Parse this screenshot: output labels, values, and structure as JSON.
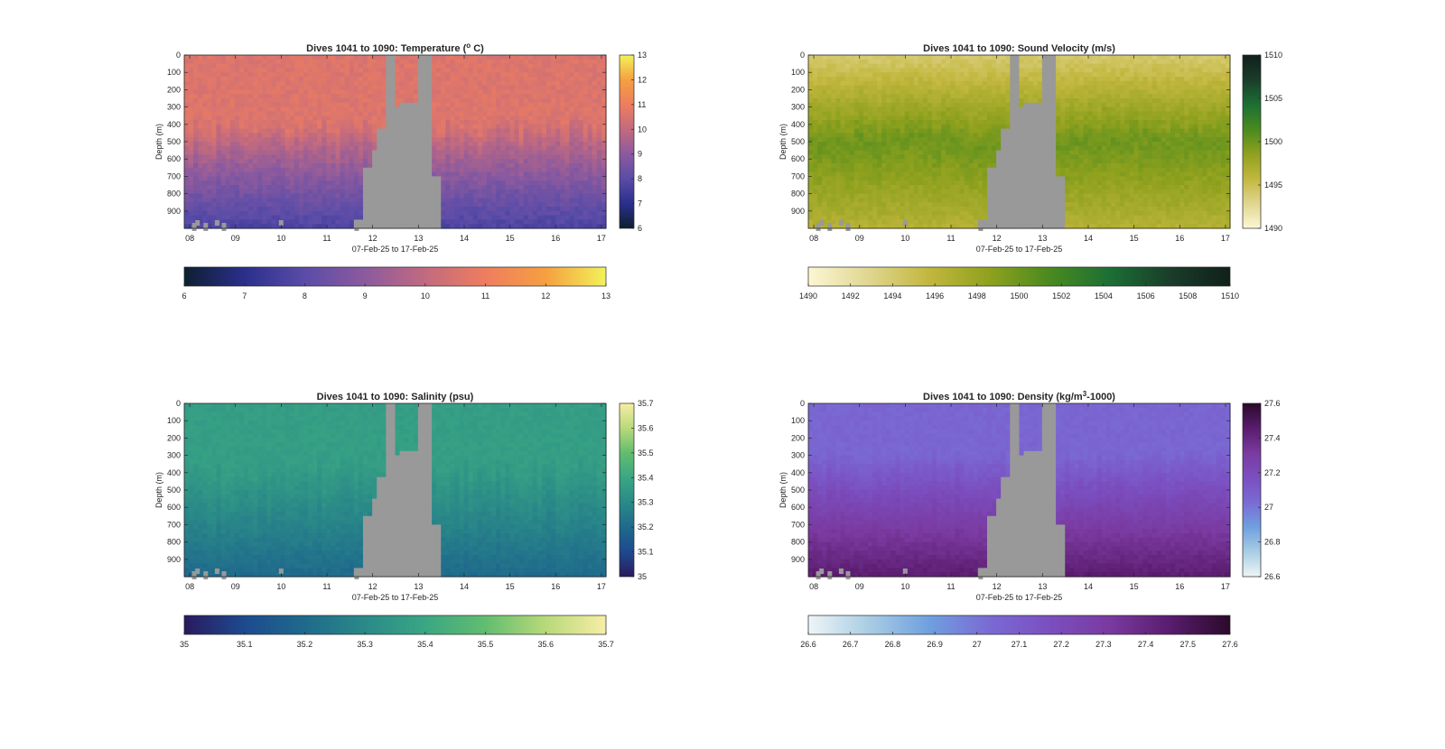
{
  "chart_data": [
    {
      "type": "heatmap",
      "title_main": "Dives 1041 to 1090: Temperature (",
      "title_sup": "o",
      "title_end": " C)",
      "xlabel": "07-Feb-25 to 17-Feb-25",
      "ylabel": "Depth (m)",
      "xlim": [
        7.88,
        17.1
      ],
      "ylim": [
        0,
        1000
      ],
      "x_ticks": [
        "08",
        "09",
        "10",
        "11",
        "12",
        "13",
        "14",
        "15",
        "16",
        "17"
      ],
      "y_ticks": [
        "0",
        "100",
        "200",
        "300",
        "400",
        "500",
        "600",
        "700",
        "800",
        "900"
      ],
      "colorbar_range": [
        6,
        13
      ],
      "colorbar_ticks": [
        "6",
        "7",
        "8",
        "9",
        "10",
        "11",
        "12",
        "13"
      ],
      "horizontal_colorbar_ticks": [
        "6",
        "7",
        "8",
        "9",
        "10",
        "11",
        "12",
        "13"
      ],
      "colormap": [
        "#0d1f30",
        "#2b2f8c",
        "#5a4ca8",
        "#8c5a9e",
        "#c26a7f",
        "#ee7d5f",
        "#f5a040",
        "#f2f25a"
      ],
      "surface_value": 10.6,
      "bottom_value": 7.7,
      "thermocline_depth": 400,
      "gap_value_color": "#999999"
    },
    {
      "type": "heatmap",
      "title_main": "Dives 1041 to 1090: Sound Velocity (m/s)",
      "title_sup": "",
      "title_end": "",
      "xlabel": "07-Feb-25 to 17-Feb-25",
      "ylabel": "Depth (m)",
      "xlim": [
        7.88,
        17.1
      ],
      "ylim": [
        0,
        1000
      ],
      "x_ticks": [
        "08",
        "09",
        "10",
        "11",
        "12",
        "13",
        "14",
        "15",
        "16",
        "17"
      ],
      "y_ticks": [
        "0",
        "100",
        "200",
        "300",
        "400",
        "500",
        "600",
        "700",
        "800",
        "900"
      ],
      "colorbar_range": [
        1490,
        1510
      ],
      "colorbar_ticks": [
        "1490",
        "1495",
        "1500",
        "1505",
        "1510"
      ],
      "horizontal_colorbar_ticks": [
        "1490",
        "1492",
        "1494",
        "1496",
        "1498",
        "1500",
        "1502",
        "1504",
        "1506",
        "1508",
        "1510"
      ],
      "colormap": [
        "#fcf7d4",
        "#e0d690",
        "#c2b73e",
        "#8fa11e",
        "#4a8a1f",
        "#1c6f34",
        "#1a3d2a",
        "#10201a"
      ],
      "surface_value": 1494,
      "mid_value": 1500,
      "bottom_value": 1496.5,
      "gap_value_color": "#999999"
    },
    {
      "type": "heatmap",
      "title_main": "Dives 1041 to 1090: Salinity (psu)",
      "title_sup": "",
      "title_end": "",
      "xlabel": "07-Feb-25 to 17-Feb-25",
      "ylabel": "Depth (m)",
      "xlim": [
        7.88,
        17.1
      ],
      "ylim": [
        0,
        1000
      ],
      "x_ticks": [
        "08",
        "09",
        "10",
        "11",
        "12",
        "13",
        "14",
        "15",
        "16",
        "17"
      ],
      "y_ticks": [
        "0",
        "100",
        "200",
        "300",
        "400",
        "500",
        "600",
        "700",
        "800",
        "900"
      ],
      "colorbar_range": [
        35.0,
        35.7
      ],
      "colorbar_ticks": [
        "35",
        "35.1",
        "35.2",
        "35.3",
        "35.4",
        "35.5",
        "35.6",
        "35.7"
      ],
      "horizontal_colorbar_ticks": [
        "35",
        "35.1",
        "35.2",
        "35.3",
        "35.4",
        "35.5",
        "35.6",
        "35.7"
      ],
      "colormap": [
        "#2a1a5e",
        "#1d4a8f",
        "#1f6a8c",
        "#2a8a88",
        "#3aa683",
        "#62bd6f",
        "#b8d97a",
        "#f7eea5"
      ],
      "surface_value": 35.37,
      "bottom_value": 35.2,
      "gap_value_color": "#999999"
    },
    {
      "type": "heatmap",
      "title_main": "Dives 1041 to 1090: Density (kg/m",
      "title_sup": "3",
      "title_end": "-1000)",
      "xlabel": "07-Feb-25 to 17-Feb-25",
      "ylabel": "Depth (m)",
      "xlim": [
        7.88,
        17.1
      ],
      "ylim": [
        0,
        1000
      ],
      "x_ticks": [
        "08",
        "09",
        "10",
        "11",
        "12",
        "13",
        "14",
        "15",
        "16",
        "17"
      ],
      "y_ticks": [
        "0",
        "100",
        "200",
        "300",
        "400",
        "500",
        "600",
        "700",
        "800",
        "900"
      ],
      "colorbar_range": [
        26.6,
        27.6
      ],
      "colorbar_ticks": [
        "26.6",
        "26.8",
        "27",
        "27.2",
        "27.4",
        "27.6"
      ],
      "horizontal_colorbar_ticks": [
        "26.6",
        "26.7",
        "26.8",
        "26.9",
        "27",
        "27.1",
        "27.2",
        "27.3",
        "27.4",
        "27.5",
        "27.6"
      ],
      "colormap": [
        "#eef5f7",
        "#a9cde4",
        "#6fa0df",
        "#7a6ad4",
        "#7b4fc0",
        "#7a3aa0",
        "#5a1c6e",
        "#2a0a2a"
      ],
      "surface_value": 27.05,
      "bottom_value": 27.45,
      "gap_value_color": "#999999"
    }
  ]
}
